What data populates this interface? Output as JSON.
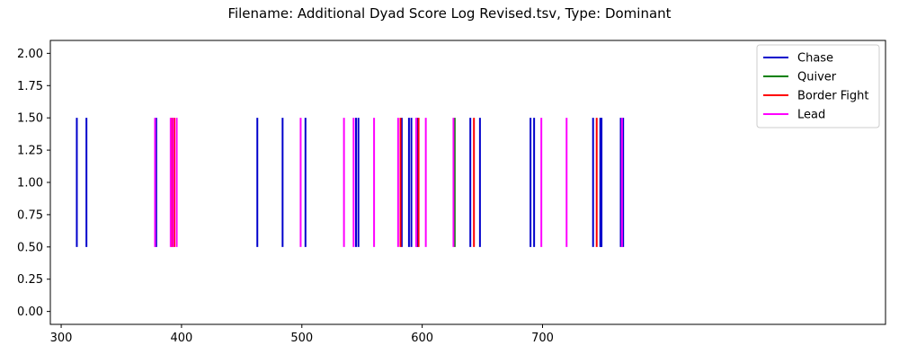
{
  "chart_data": {
    "type": "event-raster",
    "title": "Filename: Additional Dyad Score Log Revised.tsv, Type: Dominant",
    "xlabel": "",
    "ylabel": "",
    "xlim": [
      291,
      985
    ],
    "ylim": [
      -0.1,
      2.1
    ],
    "xticks": [
      300,
      400,
      500,
      600,
      700
    ],
    "yticks": [
      0.0,
      0.25,
      0.5,
      0.75,
      1.0,
      1.25,
      1.5,
      1.75,
      2.0
    ],
    "ytick_labels": [
      "0.00",
      "0.25",
      "0.50",
      "0.75",
      "1.00",
      "1.25",
      "1.50",
      "1.75",
      "2.00"
    ],
    "event_y_range": [
      0.5,
      1.5
    ],
    "grid": false,
    "legend_position": "top-right",
    "series": [
      {
        "name": "Chase",
        "color": "#0000cc",
        "x": [
          313,
          321,
          379,
          463,
          484,
          503,
          545,
          547,
          583,
          589,
          591,
          596,
          640,
          648,
          690,
          693,
          742,
          748,
          749,
          765,
          767
        ]
      },
      {
        "name": "Quiver",
        "color": "#008000",
        "x": [
          627
        ]
      },
      {
        "name": "Border Fight",
        "color": "#ff0000",
        "x": [
          392,
          394,
          582,
          597,
          643,
          745
        ]
      },
      {
        "name": "Lead",
        "color": "#ff00ff",
        "x": [
          378,
          391,
          393,
          396,
          499,
          535,
          543,
          560,
          580,
          595,
          603,
          626,
          699,
          720,
          766
        ]
      }
    ]
  }
}
